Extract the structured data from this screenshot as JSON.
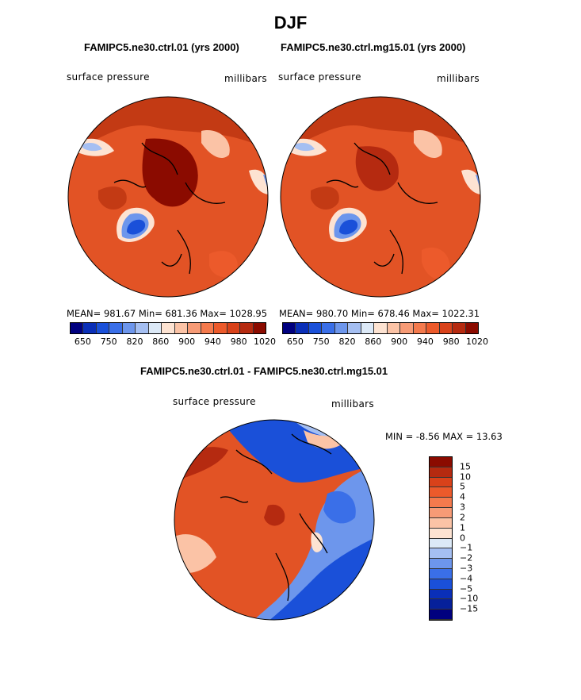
{
  "title": "DJF",
  "panels": [
    {
      "title": "FAMIPC5.ne30.ctrl.01 (yrs 2000)",
      "variable": "surface pressure",
      "units": "millibars",
      "stats": "MEAN= 981.67   Min= 681.36   Max= 1028.95"
    },
    {
      "title": "FAMIPC5.ne30.ctrl.mg15.01 (yrs 2000)",
      "variable": "surface pressure",
      "units": "millibars",
      "stats": "MEAN= 980.70   Min= 678.46   Max= 1022.31"
    }
  ],
  "pressure_colorbar": {
    "tick_labels": [
      "650",
      "750",
      "820",
      "860",
      "900",
      "940",
      "980",
      "1020"
    ],
    "colors": [
      "#00007f",
      "#0a2fb8",
      "#1a50d9",
      "#3a6fe8",
      "#6d96ec",
      "#a5bff2",
      "#dce9f7",
      "#fde3d2",
      "#fbc3a6",
      "#f79b76",
      "#f47a4d",
      "#ec5a2b",
      "#d9421a",
      "#b52a10",
      "#8b0b00"
    ]
  },
  "difference_panel": {
    "title": "FAMIPC5.ne30.ctrl.01 - FAMIPC5.ne30.ctrl.mg15.01",
    "variable": "surface pressure",
    "units": "millibars",
    "min_max": "MIN =   -8.56 MAX =   13.63",
    "colorbar": {
      "tick_labels": [
        "15",
        "10",
        "5",
        "4",
        "3",
        "2",
        "1",
        "0",
        "−1",
        "−2",
        "−3",
        "−4",
        "−5",
        "−10",
        "−15"
      ],
      "colors": [
        "#8b0b00",
        "#b52a10",
        "#d9421a",
        "#ec5a2b",
        "#f47a4d",
        "#f79b76",
        "#fbc3a6",
        "#fde3d2",
        "#dce9f7",
        "#a5bff2",
        "#6d96ec",
        "#3a6fe8",
        "#1a50d9",
        "#0a2fb8",
        "#06209a",
        "#00007f"
      ]
    }
  }
}
